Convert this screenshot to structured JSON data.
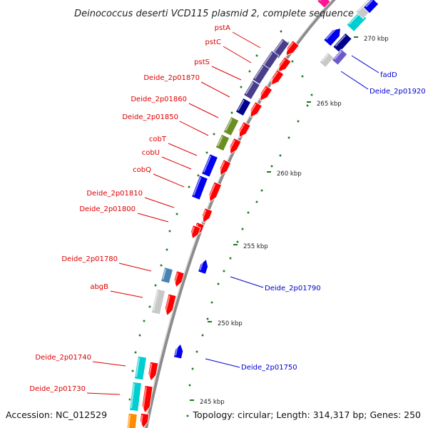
{
  "title": "Deinococcus deserti VCD115 plasmid 2, complete sequence",
  "accession": "Accession: NC_012529",
  "topology": "Topology: circular; Length: 314,317 bp; Genes: 250",
  "colors": {
    "forward_label": "#dd0000",
    "reverse_label": "#0000cc",
    "backbone": "#8c8c8c",
    "tick": "#1a7a1a",
    "red": "#ff0000",
    "blue": "#0000ee",
    "navy": "#00008b",
    "slate": "#483d8b",
    "purple": "#6a5acd",
    "olive": "#6b8e23",
    "steel": "#4682b4",
    "gray": "#c8c8c8",
    "cyan": "#00ced1",
    "orange": "#ff8c00",
    "pink": "#ff1493"
  },
  "major_ticks": [
    "270 kbp",
    "265 kbp",
    "260 kbp",
    "255 kbp",
    "250 kbp",
    "245 kbp"
  ],
  "forward_labels": [
    "pstA",
    "pstC",
    "pstS",
    "Deide_2p01870",
    "Deide_2p01860",
    "Deide_2p01850",
    "cobT",
    "cobU",
    "cobQ",
    "Deide_2p01810",
    "Deide_2p01800",
    "Deide_2p01780",
    "abgB",
    "Deide_2p01740",
    "Deide_2p01730"
  ],
  "reverse_labels": [
    "fadD",
    "Deide_2p01920",
    "Deide_2p01790",
    "Deide_2p01750"
  ]
}
